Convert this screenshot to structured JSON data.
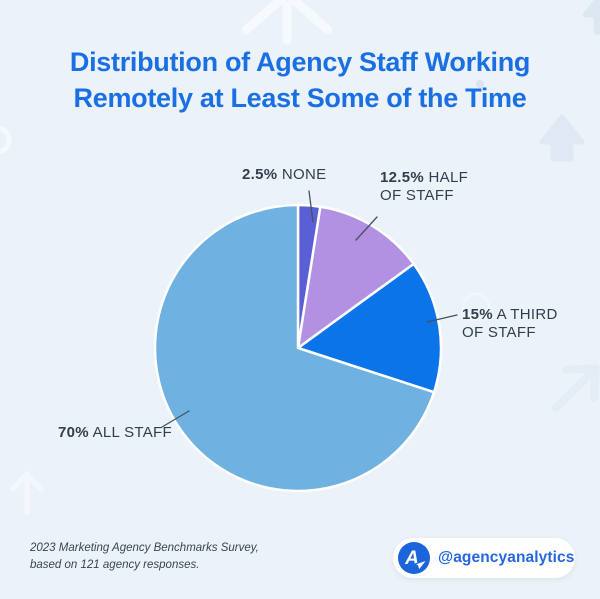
{
  "title": {
    "line1": "Distribution of Agency Staff Working",
    "line2": "Remotely at Least Some of the Time"
  },
  "chart_data": {
    "type": "pie",
    "title": "Distribution of Agency Staff Working Remotely at Least Some of the Time",
    "start_angle_deg": 0,
    "direction": "clockwise",
    "legend_position": "callout-labels",
    "slices": [
      {
        "id": "none",
        "label": "NONE",
        "pct_label": "2.5%",
        "value": 2.5,
        "color": "#5b5fd6"
      },
      {
        "id": "half-of-staff",
        "label": "HALF OF STAFF",
        "pct_label": "12.5%",
        "value": 12.5,
        "color": "#b391e2"
      },
      {
        "id": "a-third-of-staff",
        "label": "A THIRD OF STAFF",
        "pct_label": "15%",
        "value": 15,
        "color": "#0b74e8"
      },
      {
        "id": "all-staff",
        "label": "ALL STAFF",
        "pct_label": "70%",
        "value": 70,
        "color": "#6fb1e0"
      }
    ]
  },
  "footer": {
    "source_line1": "2023 Marketing Agency Benchmarks Survey,",
    "source_line2": "based on 121 agency responses."
  },
  "badge": {
    "handle": "@agencyanalytics",
    "logo_letter": "A"
  },
  "colors": {
    "background": "#ecf2f9",
    "title_text": "#1a70e2",
    "label_text": "#323e4d",
    "leader_line": "#47525f",
    "slice_divider": "#ffffff",
    "footer_text": "#3a4450",
    "badge_background": "#ffffff",
    "badge_text": "#2467e0",
    "logo_background": "#1c64dc"
  }
}
